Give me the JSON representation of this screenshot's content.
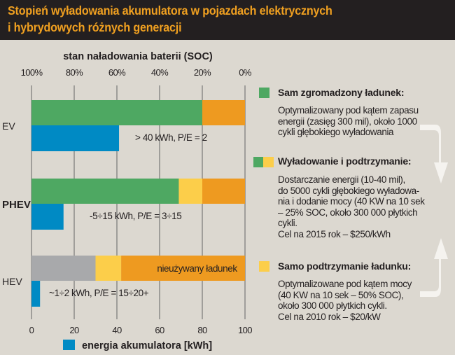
{
  "title_line1": "Stopień wyładowania akumulatora w pojazdach elektrycznych",
  "title_line2": "i hybrydowych różnych generacji",
  "chart_data": {
    "type": "bar",
    "orientation": "horizontal",
    "top_axis": {
      "label": "stan naładowania baterii (SOC)",
      "ticks": [
        "100%",
        "80%",
        "60%",
        "40%",
        "20%",
        "0%"
      ],
      "range": [
        100,
        0
      ]
    },
    "bottom_axis": {
      "label": "energia akumulatora [kWh]",
      "ticks": [
        "0",
        "20",
        "40",
        "60",
        "80",
        "100"
      ],
      "range": [
        0,
        100
      ]
    },
    "categories": [
      "EV",
      "PHEV",
      "HEV"
    ],
    "soc_segments": [
      [
        {
          "from": 100,
          "to": 20,
          "color": "#4ea862"
        },
        {
          "from": 20,
          "to": 0,
          "color": "#ee9a20"
        }
      ],
      [
        {
          "from": 100,
          "to": 31,
          "color": "#4ea862"
        },
        {
          "from": 31,
          "to": 20,
          "color": "#fcce4a"
        },
        {
          "from": 20,
          "to": 0,
          "color": "#ee9a20"
        }
      ],
      [
        {
          "from": 100,
          "to": 70,
          "color": "#a8a9ab"
        },
        {
          "from": 70,
          "to": 58,
          "color": "#fcce4a"
        },
        {
          "from": 58,
          "to": 0,
          "color": "#ee9a20",
          "label": "nieużywany ładunek"
        }
      ]
    ],
    "energy_kwh": [
      41,
      15,
      4
    ],
    "energy_color": "#008ac4",
    "energy_labels": [
      "> 40 kWh, P/E = 2",
      "-5÷15 kWh, P/E = 3÷15",
      "~1÷2 kWh, P/E = 15÷20+"
    ],
    "grid": true
  },
  "legend": [
    {
      "title": "Sam zgromadzony ładunek:",
      "colors": [
        "#4ea862"
      ],
      "lines": [
        "Optymalizowany pod kątem zapasu",
        "energii (zasięg 300 mil), około 1000",
        "cykli głębokiego wyładowania"
      ]
    },
    {
      "title": "Wyładowanie i podtrzymanie:",
      "colors": [
        "#4ea862",
        "#fcce4a"
      ],
      "lines": [
        "Dostarczanie energii (10-40 mil),",
        "do 5000 cykli głębokiego wyładowa-",
        "nia i dodanie mocy (40 KW na 10 sek",
        "– 25% SOC, około 300 000 płytkich",
        "cykli.",
        "Cel na 2015 rok – $250/kWh"
      ]
    },
    {
      "title": "Samo podtrzymanie ładunku:",
      "colors": [
        "#fcce4a"
      ],
      "lines": [
        "Optymalizowane pod kątem mocy",
        "(40 KW na 10 sek – 50% SOC),",
        "około 300 000 płytkich cykli.",
        "Cel na 2010 rok – $20/kW"
      ]
    }
  ]
}
